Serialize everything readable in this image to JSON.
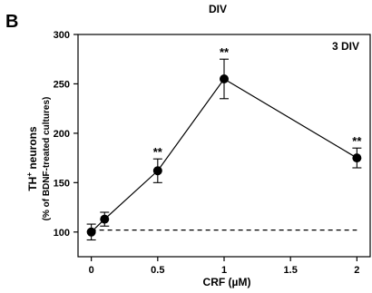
{
  "chart_data": {
    "type": "scatter",
    "top_caption": "DIV",
    "panel_label": "B",
    "annotation": "3 DIV",
    "xlabel": "CRF (µM)",
    "ylabel_line1_main": "TH",
    "ylabel_line1_sup": "+",
    "ylabel_line1_rest": " neurons",
    "ylabel_line2": "(% of BDNF-treated cultures)",
    "xlim": [
      -0.1,
      2.1
    ],
    "ylim": [
      75,
      300
    ],
    "x_ticks": [
      {
        "value": 0,
        "label": "0"
      },
      {
        "value": 0.5,
        "label": "0.5"
      },
      {
        "value": 1,
        "label": "1"
      },
      {
        "value": 1.5,
        "label": "1.5"
      },
      {
        "value": 2,
        "label": "2"
      }
    ],
    "y_ticks": [
      {
        "value": 100,
        "label": "100"
      },
      {
        "value": 150,
        "label": "150"
      },
      {
        "value": 200,
        "label": "200"
      },
      {
        "value": 250,
        "label": "250"
      },
      {
        "value": 300,
        "label": "300"
      }
    ],
    "reference_line": 102,
    "points": [
      {
        "x": 0,
        "y": 100,
        "err": 8,
        "sig": ""
      },
      {
        "x": 0.1,
        "y": 113,
        "err": 7,
        "sig": ""
      },
      {
        "x": 0.5,
        "y": 162,
        "err": 12,
        "sig": "**"
      },
      {
        "x": 1,
        "y": 255,
        "err": 20,
        "sig": "**"
      },
      {
        "x": 2,
        "y": 175,
        "err": 10,
        "sig": "**"
      }
    ]
  }
}
